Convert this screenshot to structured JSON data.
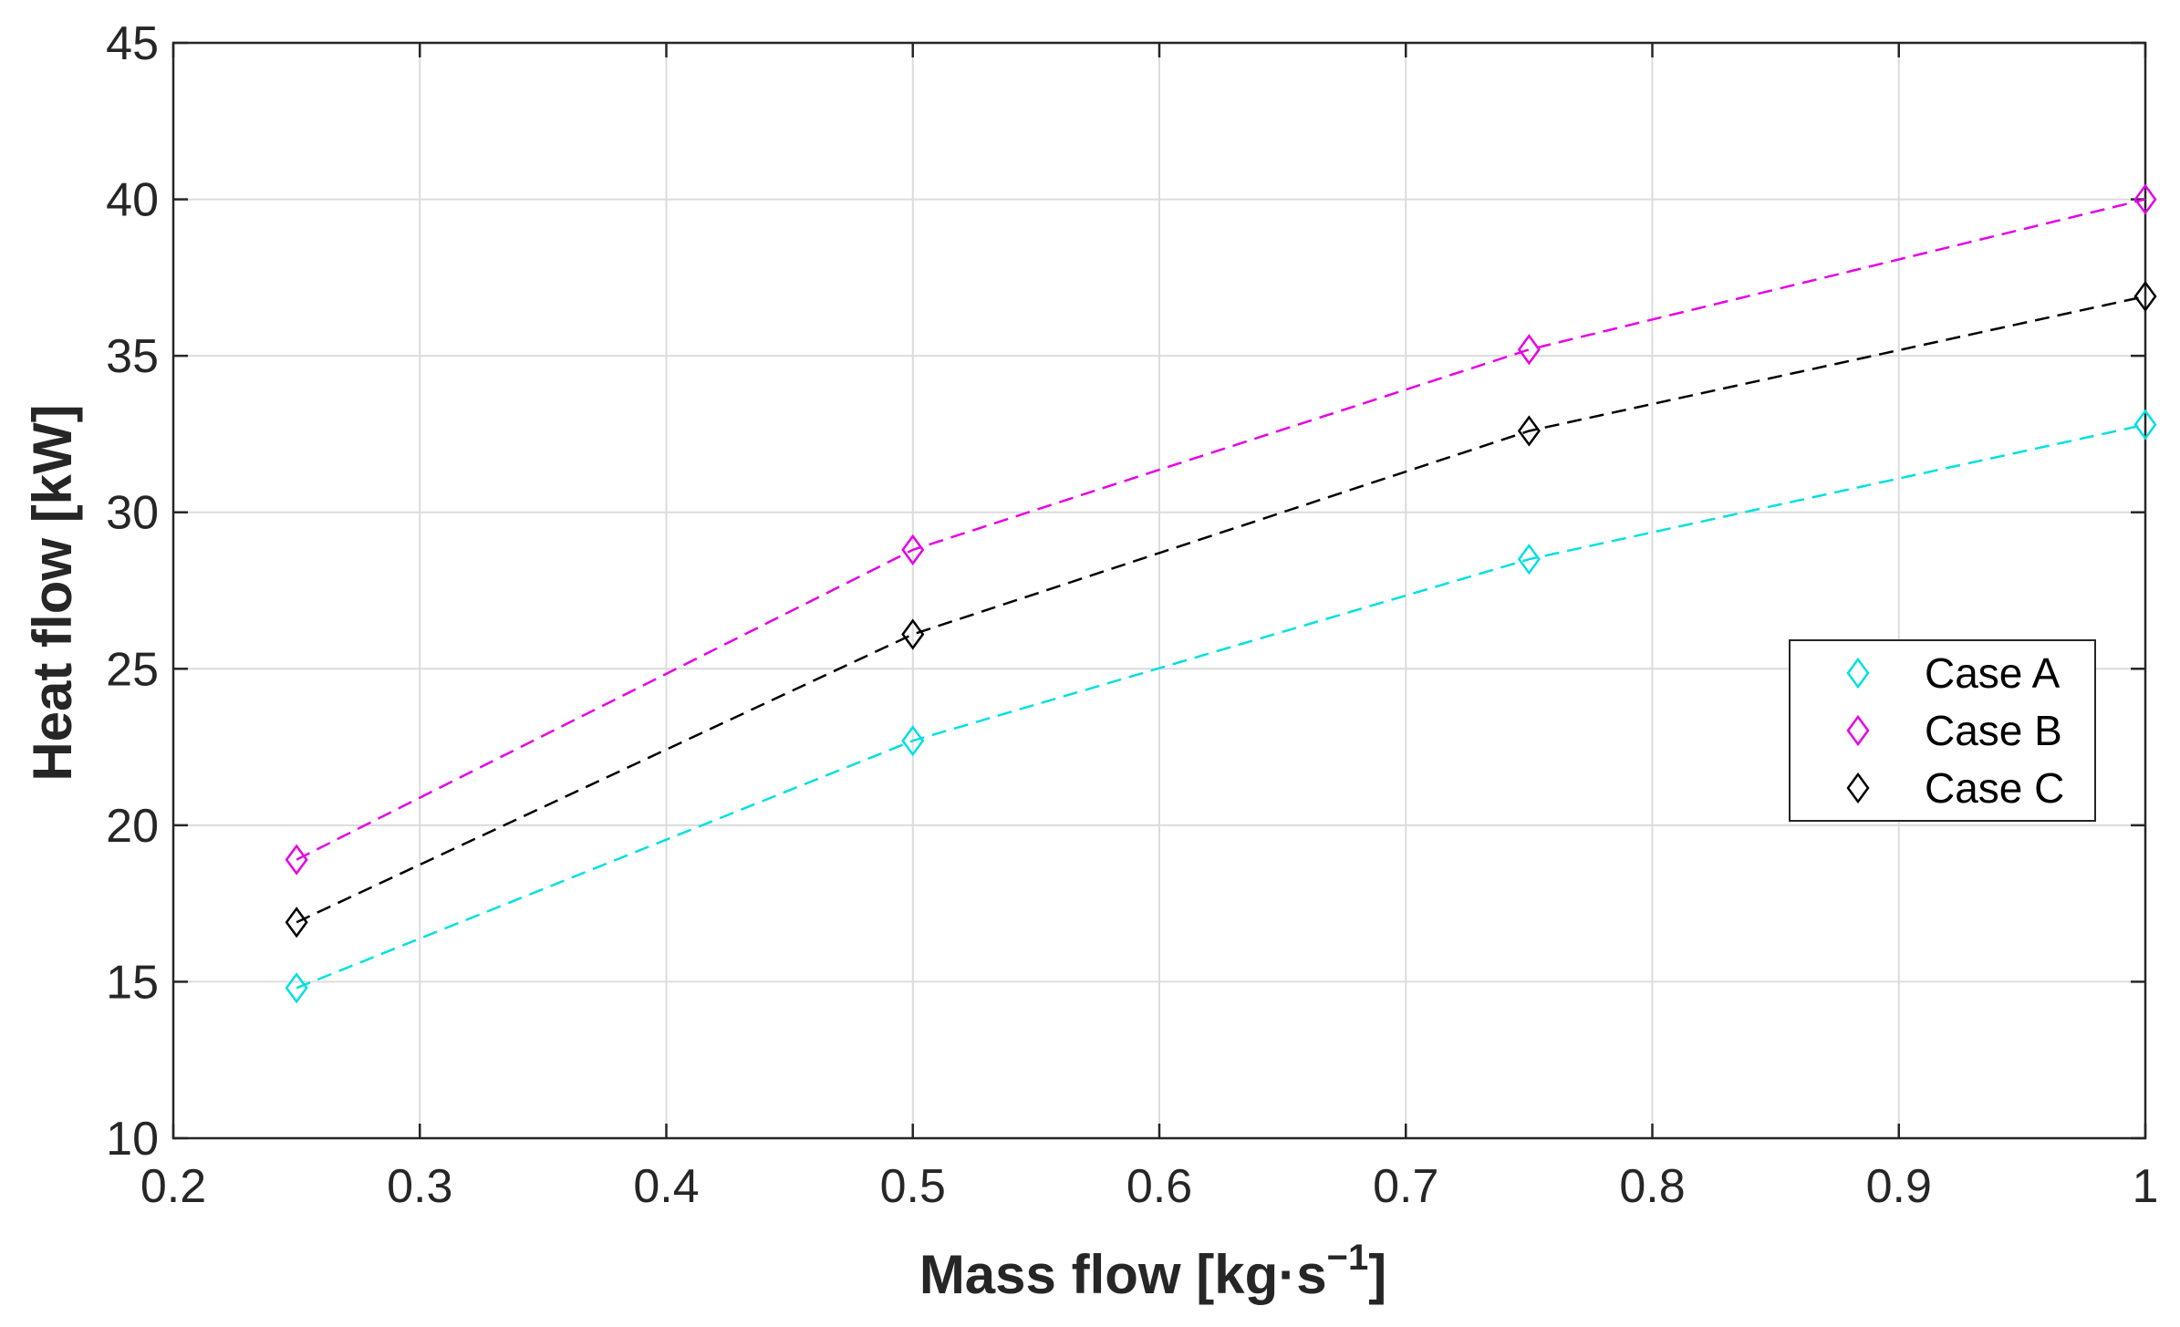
{
  "chart_data": {
    "type": "line",
    "title": "",
    "xlabel": "Mass flow [kg·s",
    "xlabel_superscript": "−1",
    "xlabel_suffix": "]",
    "ylabel": "Heat flow [kW]",
    "xlim": [
      0.2,
      1.0
    ],
    "ylim": [
      10,
      45
    ],
    "xticks": [
      0.2,
      0.3,
      0.4,
      0.5,
      0.6,
      0.7,
      0.8,
      0.9,
      1.0
    ],
    "xtick_labels": [
      "0.2",
      "0.3",
      "0.4",
      "0.5",
      "0.6",
      "0.7",
      "0.8",
      "0.9",
      "1"
    ],
    "yticks": [
      10,
      15,
      20,
      25,
      30,
      35,
      40,
      45
    ],
    "ytick_labels": [
      "10",
      "15",
      "20",
      "25",
      "30",
      "35",
      "40",
      "45"
    ],
    "grid": true,
    "legend_position": "right",
    "x": [
      0.25,
      0.5,
      0.75,
      1.0
    ],
    "series": [
      {
        "name": "Case A",
        "color": "#00e0e0",
        "marker": "diamond",
        "line_style": "dashed",
        "values": [
          14.8,
          22.7,
          28.5,
          32.8
        ]
      },
      {
        "name": "Case B",
        "color": "#e600e6",
        "marker": "diamond",
        "line_style": "dashed",
        "values": [
          18.9,
          28.8,
          35.2,
          40.0
        ]
      },
      {
        "name": "Case C",
        "color": "#000000",
        "marker": "diamond",
        "line_style": "dashed",
        "values": [
          16.9,
          26.1,
          32.6,
          36.9
        ]
      }
    ]
  }
}
